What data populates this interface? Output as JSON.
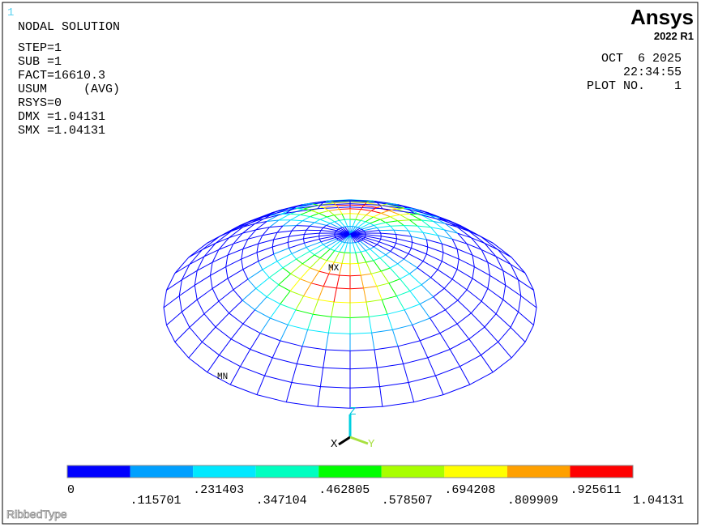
{
  "window_number": "1",
  "info": {
    "title": "NODAL SOLUTION",
    "lines": [
      "STEP=1",
      "SUB =1",
      "FACT=16610.3",
      "USUM     (AVG)",
      "RSYS=0",
      "DMX =1.04131",
      "SMX =1.04131"
    ]
  },
  "brand": {
    "name": "Ansys",
    "release": "2022 R1"
  },
  "stamp": {
    "date": "OCT  6 2025",
    "time": "22:34:55",
    "plot": "PLOT NO.    1"
  },
  "markers": {
    "max": "MX",
    "min": "MN"
  },
  "triad": {
    "x": "X",
    "y": "Y",
    "z": "Z"
  },
  "legend": {
    "colors": [
      "#0000ff",
      "#00a0ff",
      "#00e8ff",
      "#00ffc0",
      "#00ff00",
      "#a8ff00",
      "#ffff00",
      "#ffa000",
      "#ff0000"
    ],
    "labels": [
      "0",
      ".115701",
      ".231403",
      ".347104",
      ".462805",
      ".578507",
      ".694208",
      ".809909",
      ".925611",
      "1.04131"
    ]
  },
  "watermark": "RibbedType"
}
